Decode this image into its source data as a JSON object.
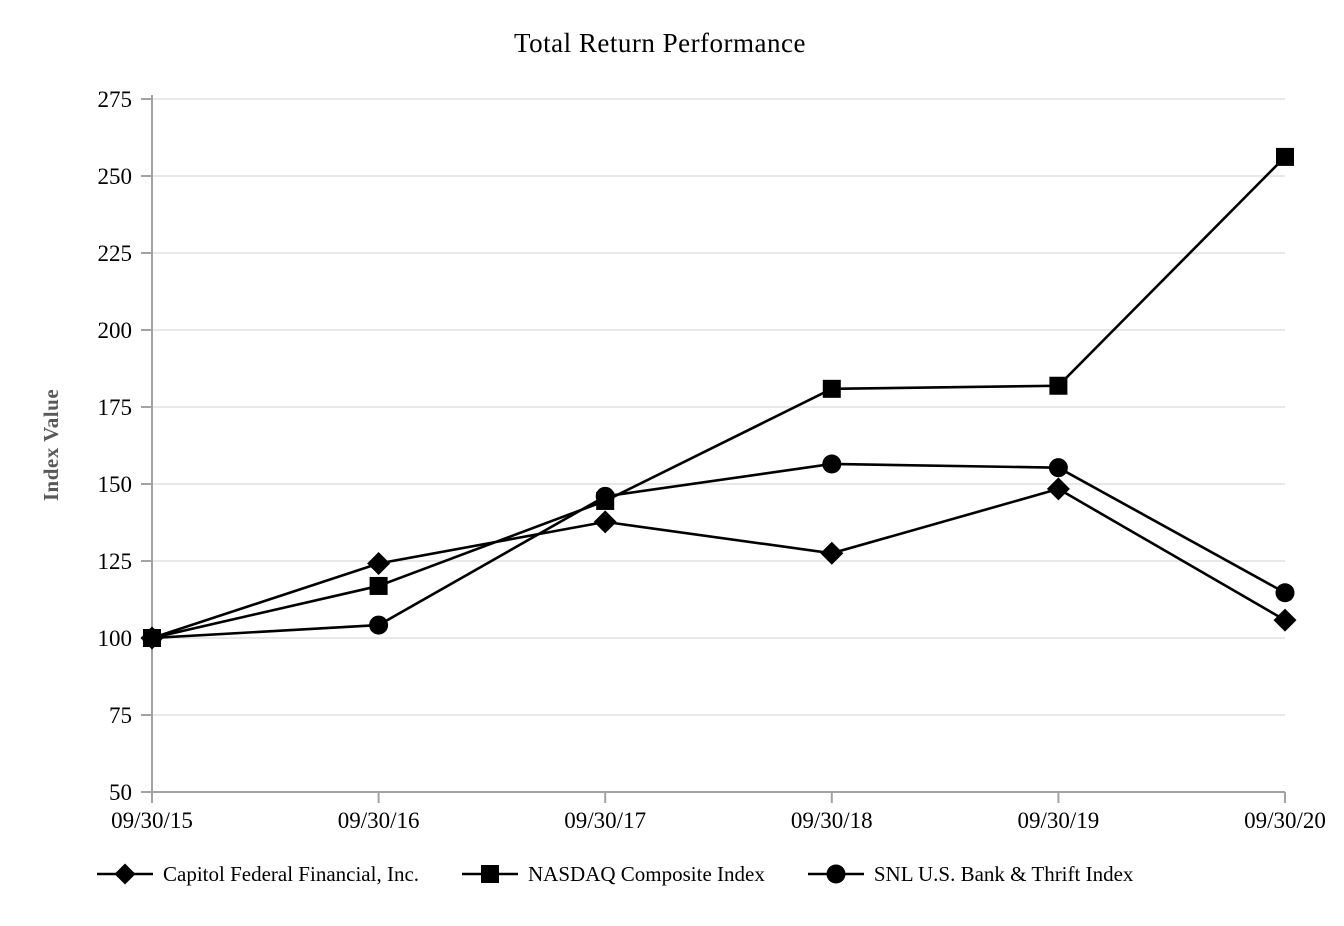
{
  "chart": {
    "title": "Total Return Performance",
    "ylabel": "Index Value"
  },
  "chart_data": {
    "type": "line",
    "title": "Total Return Performance",
    "xlabel": "",
    "ylabel": "Index Value",
    "categories": [
      "09/30/15",
      "09/30/16",
      "09/30/17",
      "09/30/18",
      "09/30/19",
      "09/30/20"
    ],
    "y_ticks": [
      50,
      75,
      100,
      125,
      150,
      175,
      200,
      225,
      250,
      275
    ],
    "ylim": [
      50,
      275
    ],
    "grid": "horizontal-only",
    "legend_position": "bottom",
    "series": [
      {
        "name": "Capitol Federal Financial, Inc.",
        "marker": "diamond",
        "color": "#000000",
        "values": [
          100,
          124.2,
          137.7,
          127.5,
          148.4,
          105.8
        ]
      },
      {
        "name": "NASDAQ Composite Index",
        "marker": "square",
        "color": "#000000",
        "values": [
          100,
          116.9,
          144.5,
          180.9,
          181.9,
          256.2
        ]
      },
      {
        "name": "SNL U.S. Bank & Thrift Index",
        "marker": "circle",
        "color": "#000000",
        "values": [
          100,
          104.2,
          146.0,
          156.5,
          155.3,
          114.7
        ]
      }
    ],
    "style_colors": {
      "gridline": "#e8e8e8",
      "axis": "#a3a3a3",
      "tick_text": "#000000",
      "axis_title": "#595959"
    }
  }
}
